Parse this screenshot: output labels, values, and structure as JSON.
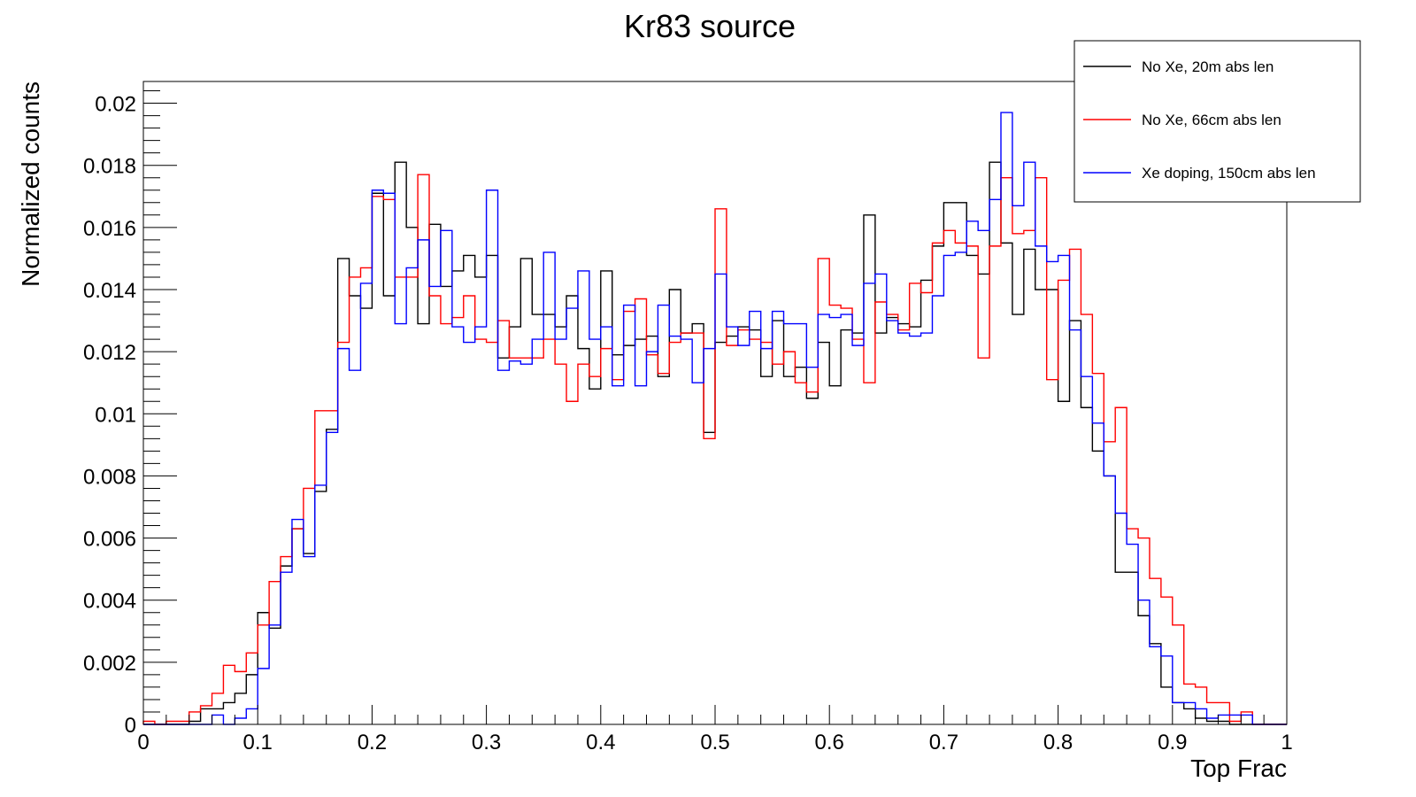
{
  "chart_data": {
    "type": "histogram",
    "title": "Kr83 source",
    "xlabel": "Top Frac",
    "ylabel": "Normalized counts",
    "xlim": [
      0,
      1
    ],
    "ylim": [
      0,
      0.0207
    ],
    "bin_width": 0.01,
    "x_tick_labels": [
      "0",
      "0.1",
      "0.2",
      "0.3",
      "0.4",
      "0.5",
      "0.6",
      "0.7",
      "0.8",
      "0.9",
      "1"
    ],
    "x_tick_values": [
      0,
      0.1,
      0.2,
      0.3,
      0.4,
      0.5,
      0.6,
      0.7,
      0.8,
      0.9,
      1
    ],
    "y_tick_labels": [
      "0",
      "0.002",
      "0.004",
      "0.006",
      "0.008",
      "0.01",
      "0.012",
      "0.014",
      "0.016",
      "0.018",
      "0.02"
    ],
    "y_tick_values": [
      0,
      0.002,
      0.004,
      0.006,
      0.008,
      0.01,
      0.012,
      0.014,
      0.016,
      0.018,
      0.02
    ],
    "grid": false,
    "legend_position": "top-right",
    "series": [
      {
        "name": "No Xe, 20m abs len",
        "color": "#000000",
        "values": [
          0,
          0,
          0,
          0,
          0.0001,
          0.0005,
          0.0005,
          0.0007,
          0.001,
          0.0016,
          0.0036,
          0.0031,
          0.0051,
          0.0063,
          0.0055,
          0.0075,
          0.0095,
          0.015,
          0.0138,
          0.0134,
          0.0171,
          0.0138,
          0.0181,
          0.016,
          0.0129,
          0.0161,
          0.0141,
          0.0146,
          0.0151,
          0.0144,
          0.0151,
          0.0118,
          0.0128,
          0.015,
          0.0132,
          0.0132,
          0.0128,
          0.0138,
          0.0121,
          0.0108,
          0.0146,
          0.0119,
          0.0122,
          0.0124,
          0.0125,
          0.0112,
          0.014,
          0.0126,
          0.0129,
          0.0094,
          0.0123,
          0.0125,
          0.0128,
          0.0127,
          0.0112,
          0.013,
          0.0112,
          0.0115,
          0.0105,
          0.0123,
          0.0109,
          0.0127,
          0.0126,
          0.0164,
          0.0126,
          0.0131,
          0.0129,
          0.0128,
          0.0143,
          0.0154,
          0.0168,
          0.0168,
          0.0151,
          0.0145,
          0.0181,
          0.0155,
          0.0132,
          0.0153,
          0.014,
          0.014,
          0.0104,
          0.013,
          0.0102,
          0.0088,
          0.008,
          0.0049,
          0.0049,
          0.0035,
          0.0026,
          0.0012,
          0.0007,
          0.0005,
          0.0002,
          0.0001,
          0.0001,
          0,
          0,
          0,
          0,
          0
        ]
      },
      {
        "name": "No Xe, 66cm abs len",
        "color": "#ff0000",
        "values": [
          0.0001,
          0,
          0.0001,
          0.0001,
          0.0004,
          0.0006,
          0.001,
          0.0019,
          0.0017,
          0.0023,
          0.0032,
          0.0046,
          0.0054,
          0.0063,
          0.0076,
          0.0101,
          0.0101,
          0.0123,
          0.0144,
          0.0147,
          0.017,
          0.0169,
          0.0144,
          0.0144,
          0.0177,
          0.0138,
          0.0129,
          0.0131,
          0.0138,
          0.0124,
          0.0123,
          0.013,
          0.0118,
          0.0118,
          0.0118,
          0.0124,
          0.0116,
          0.0104,
          0.0116,
          0.0112,
          0.0121,
          0.0111,
          0.0133,
          0.0137,
          0.0119,
          0.0113,
          0.0123,
          0.0126,
          0.0126,
          0.0092,
          0.0166,
          0.0122,
          0.0127,
          0.0124,
          0.0123,
          0.0116,
          0.012,
          0.011,
          0.0107,
          0.015,
          0.0135,
          0.0134,
          0.0124,
          0.011,
          0.0136,
          0.0132,
          0.0127,
          0.0142,
          0.0139,
          0.0155,
          0.0159,
          0.0155,
          0.0154,
          0.0118,
          0.0154,
          0.0176,
          0.0158,
          0.0159,
          0.0176,
          0.0111,
          0.0143,
          0.0153,
          0.0132,
          0.0113,
          0.0091,
          0.0102,
          0.0063,
          0.006,
          0.0047,
          0.0041,
          0.0032,
          0.0013,
          0.0012,
          0.0007,
          0.0007,
          0.0001,
          0.0004,
          0,
          0,
          0
        ]
      },
      {
        "name": "Xe doping, 150cm abs len",
        "color": "#0000ff",
        "values": [
          0,
          0,
          0,
          0,
          0,
          0,
          0.0003,
          0,
          0.0002,
          0.0005,
          0.0018,
          0.0032,
          0.0049,
          0.0066,
          0.0054,
          0.0077,
          0.0094,
          0.0121,
          0.0114,
          0.0142,
          0.0172,
          0.0171,
          0.0129,
          0.0147,
          0.0156,
          0.0141,
          0.0159,
          0.0128,
          0.0123,
          0.0128,
          0.0172,
          0.0114,
          0.0117,
          0.0116,
          0.0124,
          0.0152,
          0.0124,
          0.0134,
          0.0146,
          0.0124,
          0.0128,
          0.0109,
          0.0135,
          0.0109,
          0.012,
          0.0135,
          0.0125,
          0.0124,
          0.011,
          0.0121,
          0.0145,
          0.0128,
          0.0122,
          0.0133,
          0.0121,
          0.0133,
          0.0129,
          0.0129,
          0.0115,
          0.0132,
          0.0131,
          0.0132,
          0.0122,
          0.0142,
          0.0145,
          0.013,
          0.0126,
          0.0125,
          0.0126,
          0.0138,
          0.0151,
          0.0152,
          0.0162,
          0.0159,
          0.0169,
          0.0197,
          0.0167,
          0.0181,
          0.0154,
          0.0149,
          0.0151,
          0.0127,
          0.0112,
          0.0097,
          0.008,
          0.0068,
          0.0058,
          0.004,
          0.0025,
          0.0022,
          0.0007,
          0.0007,
          0.0005,
          0.0002,
          0.0003,
          0.0003,
          0.0003,
          0,
          0,
          0
        ]
      }
    ]
  }
}
